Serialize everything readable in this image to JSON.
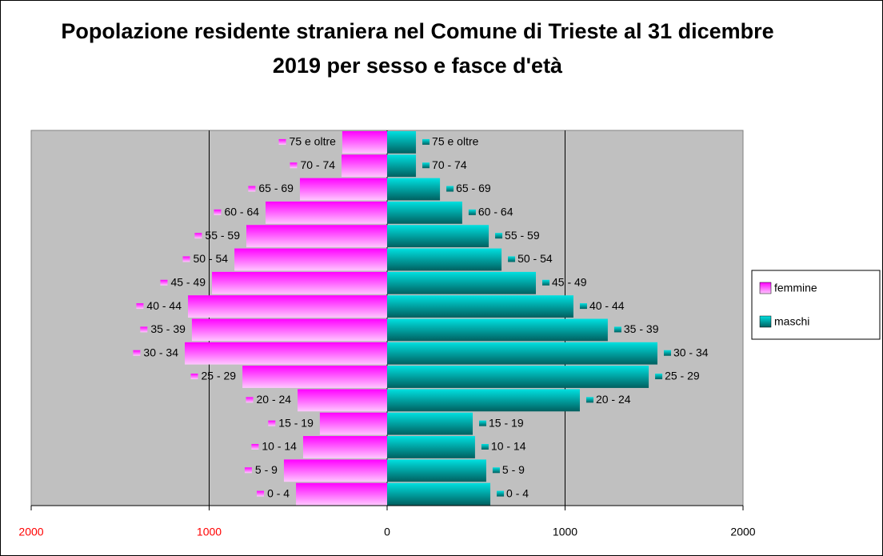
{
  "chart_data": {
    "type": "bar",
    "orientation": "horizontal",
    "stacked": true,
    "title": "Popolazione residente straniera nel Comune di Trieste al 31 dicembre 2019 per sesso e fasce d'età",
    "categories": [
      "0 - 4",
      "5 - 9",
      "10 - 14",
      "15 - 19",
      "20 - 24",
      "25 - 29",
      "30 - 34",
      "35 - 39",
      "40 - 44",
      "45 - 49",
      "50 - 54",
      "55 - 59",
      "60 - 64",
      "65 - 69",
      "70 - 74",
      "75 e oltre"
    ],
    "series": [
      {
        "name": "femmine",
        "color": "#ff00ff",
        "values": [
          -512,
          -580,
          -472,
          -378,
          -503,
          -813,
          -1137,
          -1097,
          -1119,
          -984,
          -858,
          -791,
          -683,
          -490,
          -256,
          -252
        ]
      },
      {
        "name": "maschi",
        "color": "#00e0e0",
        "values": [
          580,
          557,
          494,
          481,
          1083,
          1470,
          1519,
          1240,
          1047,
          836,
          643,
          571,
          422,
          297,
          162,
          162
        ]
      }
    ],
    "xlim": [
      -2000,
      2000
    ],
    "xticks": [
      {
        "value": -2000,
        "label": "2000"
      },
      {
        "value": -1000,
        "label": "1000"
      },
      0,
      1000,
      2000
    ],
    "xtick_colors": [
      "#ff0000",
      "#ff0000",
      "#000000",
      "#000000",
      "#000000"
    ],
    "grid": true,
    "legend": "right",
    "plot_background": "#c0c0c0"
  }
}
